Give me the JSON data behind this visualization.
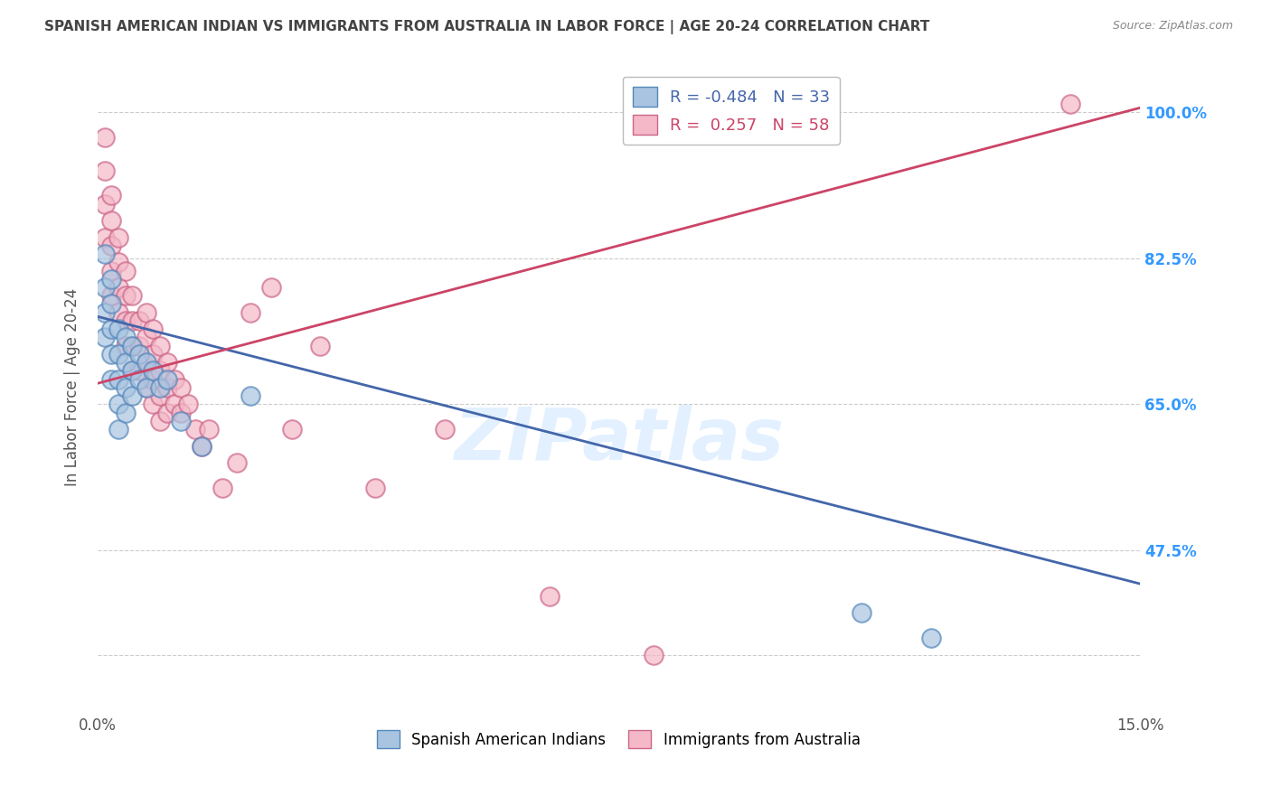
{
  "title": "SPANISH AMERICAN INDIAN VS IMMIGRANTS FROM AUSTRALIA IN LABOR FORCE | AGE 20-24 CORRELATION CHART",
  "source": "Source: ZipAtlas.com",
  "ylabel": "In Labor Force | Age 20-24",
  "xlim": [
    0.0,
    0.15
  ],
  "ylim": [
    0.28,
    1.06
  ],
  "yticks": [
    0.35,
    0.475,
    0.65,
    0.825,
    1.0
  ],
  "ytick_labels": [
    "",
    "47.5%",
    "65.0%",
    "82.5%",
    "100.0%"
  ],
  "blue_R": -0.484,
  "blue_N": 33,
  "pink_R": 0.257,
  "pink_N": 58,
  "blue_color": "#a8c4e0",
  "pink_color": "#f4b8c8",
  "blue_edge_color": "#5588bb",
  "pink_edge_color": "#cc6688",
  "blue_line_color": "#4466aa",
  "pink_line_color": "#cc4466",
  "watermark_text": "ZIPatlas",
  "watermark_color": "#ddeeff",
  "background_color": "#ffffff",
  "grid_color": "#cccccc",
  "title_color": "#444444",
  "right_tick_color": "#3399FF",
  "blue_label": "Spanish American Indians",
  "pink_label": "Immigrants from Australia",
  "blue_x": [
    0.001,
    0.001,
    0.001,
    0.001,
    0.002,
    0.002,
    0.002,
    0.002,
    0.002,
    0.003,
    0.003,
    0.003,
    0.003,
    0.003,
    0.004,
    0.004,
    0.004,
    0.004,
    0.005,
    0.005,
    0.005,
    0.006,
    0.006,
    0.007,
    0.007,
    0.008,
    0.009,
    0.01,
    0.012,
    0.015,
    0.022,
    0.11,
    0.12
  ],
  "blue_y": [
    0.83,
    0.79,
    0.76,
    0.73,
    0.8,
    0.77,
    0.74,
    0.71,
    0.68,
    0.74,
    0.71,
    0.68,
    0.65,
    0.62,
    0.73,
    0.7,
    0.67,
    0.64,
    0.72,
    0.69,
    0.66,
    0.71,
    0.68,
    0.7,
    0.67,
    0.69,
    0.67,
    0.68,
    0.63,
    0.6,
    0.66,
    0.4,
    0.37
  ],
  "pink_x": [
    0.001,
    0.001,
    0.001,
    0.001,
    0.002,
    0.002,
    0.002,
    0.002,
    0.002,
    0.003,
    0.003,
    0.003,
    0.003,
    0.004,
    0.004,
    0.004,
    0.004,
    0.005,
    0.005,
    0.005,
    0.005,
    0.006,
    0.006,
    0.006,
    0.007,
    0.007,
    0.007,
    0.007,
    0.008,
    0.008,
    0.008,
    0.008,
    0.009,
    0.009,
    0.009,
    0.009,
    0.01,
    0.01,
    0.01,
    0.011,
    0.011,
    0.012,
    0.012,
    0.013,
    0.014,
    0.015,
    0.016,
    0.018,
    0.02,
    0.022,
    0.025,
    0.028,
    0.032,
    0.04,
    0.05,
    0.065,
    0.08,
    0.14
  ],
  "pink_y": [
    0.97,
    0.93,
    0.89,
    0.85,
    0.9,
    0.87,
    0.84,
    0.81,
    0.78,
    0.85,
    0.82,
    0.79,
    0.76,
    0.81,
    0.78,
    0.75,
    0.72,
    0.78,
    0.75,
    0.72,
    0.69,
    0.75,
    0.72,
    0.69,
    0.76,
    0.73,
    0.7,
    0.67,
    0.74,
    0.71,
    0.68,
    0.65,
    0.72,
    0.69,
    0.66,
    0.63,
    0.7,
    0.67,
    0.64,
    0.68,
    0.65,
    0.67,
    0.64,
    0.65,
    0.62,
    0.6,
    0.62,
    0.55,
    0.58,
    0.76,
    0.79,
    0.62,
    0.72,
    0.55,
    0.62,
    0.42,
    0.35,
    1.01
  ],
  "blue_line_x0": 0.0,
  "blue_line_y0": 0.755,
  "blue_line_x1": 0.15,
  "blue_line_y1": 0.435,
  "pink_line_x0": 0.0,
  "pink_line_y0": 0.675,
  "pink_line_x1": 0.15,
  "pink_line_y1": 1.005
}
